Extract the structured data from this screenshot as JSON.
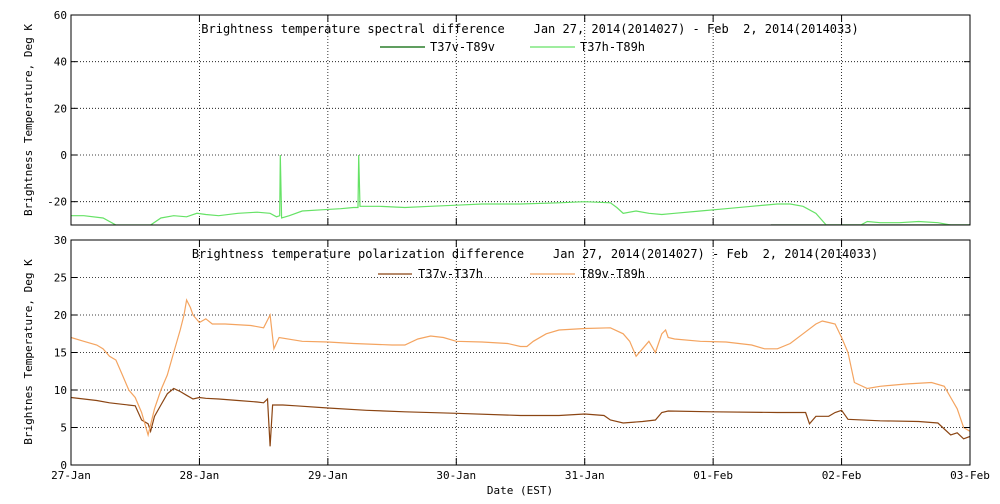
{
  "chart_data": [
    {
      "type": "line",
      "title": "Brightness temperature spectral difference    Jan 27, 2014(2014027) - Feb  2, 2014(2014033)",
      "ylabel": "Brightness Temperature, Deg K",
      "ylim": [
        -30,
        60
      ],
      "yticks": [
        -20,
        0,
        20,
        40,
        60
      ],
      "xlim": [
        0,
        7
      ],
      "grid": true,
      "legend_position": "top-center",
      "series": [
        {
          "name": "T37v-T89v",
          "color": "#006400",
          "points": [
            [
              5.45,
              -30
            ],
            [
              5.5,
              -30
            ],
            [
              7.0,
              -30
            ]
          ]
        },
        {
          "name": "T37h-T89h",
          "color": "#66e266",
          "points": [
            [
              0,
              -26
            ],
            [
              0.1,
              -26
            ],
            [
              0.25,
              -27
            ],
            [
              0.35,
              -30
            ],
            [
              0.62,
              -30
            ],
            [
              0.7,
              -27
            ],
            [
              0.8,
              -26
            ],
            [
              0.9,
              -26.5
            ],
            [
              0.98,
              -25
            ],
            [
              1.05,
              -25.5
            ],
            [
              1.15,
              -26
            ],
            [
              1.3,
              -25
            ],
            [
              1.45,
              -24.5
            ],
            [
              1.55,
              -25
            ],
            [
              1.6,
              -26.5
            ],
            [
              1.625,
              -26
            ],
            [
              1.63,
              0
            ],
            [
              1.64,
              -27
            ],
            [
              1.7,
              -26
            ],
            [
              1.8,
              -24
            ],
            [
              1.95,
              -23.5
            ],
            [
              2.1,
              -23
            ],
            [
              2.2,
              -22.5
            ],
            [
              2.235,
              -22.5
            ],
            [
              2.24,
              0
            ],
            [
              2.25,
              -22
            ],
            [
              2.3,
              -22
            ],
            [
              2.4,
              -22
            ],
            [
              2.6,
              -22.5
            ],
            [
              2.8,
              -22
            ],
            [
              3.0,
              -21.5
            ],
            [
              3.2,
              -21
            ],
            [
              3.5,
              -21
            ],
            [
              3.8,
              -20.5
            ],
            [
              4.0,
              -20
            ],
            [
              4.2,
              -20.5
            ],
            [
              4.25,
              -22.5
            ],
            [
              4.3,
              -25
            ],
            [
              4.4,
              -24
            ],
            [
              4.5,
              -25
            ],
            [
              4.6,
              -25.5
            ],
            [
              4.7,
              -25
            ],
            [
              4.9,
              -24
            ],
            [
              5.1,
              -23
            ],
            [
              5.3,
              -22
            ],
            [
              5.5,
              -21
            ],
            [
              5.6,
              -21
            ],
            [
              5.7,
              -22
            ],
            [
              5.8,
              -25
            ],
            [
              5.88,
              -30
            ],
            [
              6.15,
              -30
            ],
            [
              6.2,
              -28.5
            ],
            [
              6.3,
              -29
            ],
            [
              6.45,
              -29
            ],
            [
              6.6,
              -28.5
            ],
            [
              6.75,
              -29
            ],
            [
              6.85,
              -30
            ],
            [
              7.0,
              -30
            ]
          ]
        }
      ]
    },
    {
      "type": "line",
      "title": "Brightness temperature polarization difference    Jan 27, 2014(2014027) - Feb  2, 2014(2014033)",
      "ylabel": "Brightnes Temperature, Deg K",
      "xlabel": "Date (EST)",
      "ylim": [
        0,
        30
      ],
      "yticks": [
        0,
        5,
        10,
        15,
        20,
        25,
        30
      ],
      "xlim": [
        0,
        7
      ],
      "xticks": [
        "27-Jan",
        "28-Jan",
        "29-Jan",
        "30-Jan",
        "31-Jan",
        "01-Feb",
        "02-Feb",
        "03-Feb"
      ],
      "grid": true,
      "legend_position": "top-center",
      "series": [
        {
          "name": "T37v-T37h",
          "color": "#8b4513",
          "points": [
            [
              0,
              9
            ],
            [
              0.1,
              8.8
            ],
            [
              0.2,
              8.6
            ],
            [
              0.3,
              8.3
            ],
            [
              0.4,
              8.1
            ],
            [
              0.5,
              7.9
            ],
            [
              0.55,
              6.0
            ],
            [
              0.6,
              5.5
            ],
            [
              0.62,
              4.5
            ],
            [
              0.65,
              6.5
            ],
            [
              0.7,
              8.0
            ],
            [
              0.75,
              9.5
            ],
            [
              0.8,
              10.2
            ],
            [
              0.85,
              9.8
            ],
            [
              0.9,
              9.3
            ],
            [
              0.95,
              8.8
            ],
            [
              1.0,
              9.0
            ],
            [
              1.05,
              8.9
            ],
            [
              1.15,
              8.8
            ],
            [
              1.3,
              8.6
            ],
            [
              1.45,
              8.4
            ],
            [
              1.5,
              8.3
            ],
            [
              1.53,
              8.8
            ],
            [
              1.55,
              2.5
            ],
            [
              1.57,
              8.0
            ],
            [
              1.65,
              8.0
            ],
            [
              1.75,
              7.9
            ],
            [
              2.0,
              7.6
            ],
            [
              2.3,
              7.3
            ],
            [
              2.6,
              7.1
            ],
            [
              3.0,
              6.9
            ],
            [
              3.5,
              6.6
            ],
            [
              3.8,
              6.6
            ],
            [
              4.0,
              6.8
            ],
            [
              4.15,
              6.6
            ],
            [
              4.2,
              6.0
            ],
            [
              4.3,
              5.6
            ],
            [
              4.45,
              5.8
            ],
            [
              4.55,
              6.0
            ],
            [
              4.6,
              7.0
            ],
            [
              4.65,
              7.2
            ],
            [
              5.0,
              7.1
            ],
            [
              5.5,
              7.0
            ],
            [
              5.72,
              7.0
            ],
            [
              5.75,
              5.5
            ],
            [
              5.8,
              6.5
            ],
            [
              5.9,
              6.5
            ],
            [
              5.95,
              7.0
            ],
            [
              6.0,
              7.3
            ],
            [
              6.05,
              6.1
            ],
            [
              6.3,
              5.9
            ],
            [
              6.6,
              5.8
            ],
            [
              6.75,
              5.6
            ],
            [
              6.8,
              4.8
            ],
            [
              6.85,
              4.0
            ],
            [
              6.9,
              4.3
            ],
            [
              6.95,
              3.5
            ],
            [
              7.0,
              3.8
            ]
          ]
        },
        {
          "name": "T89v-T89h",
          "color": "#f4a460",
          "points": [
            [
              0,
              17
            ],
            [
              0.1,
              16.5
            ],
            [
              0.2,
              16
            ],
            [
              0.25,
              15.5
            ],
            [
              0.3,
              14.5
            ],
            [
              0.35,
              14
            ],
            [
              0.4,
              12
            ],
            [
              0.45,
              10
            ],
            [
              0.5,
              9
            ],
            [
              0.55,
              7
            ],
            [
              0.6,
              4
            ],
            [
              0.65,
              7.5
            ],
            [
              0.7,
              10
            ],
            [
              0.75,
              12
            ],
            [
              0.8,
              15
            ],
            [
              0.85,
              18
            ],
            [
              0.88,
              20
            ],
            [
              0.9,
              22
            ],
            [
              0.93,
              21
            ],
            [
              0.95,
              20
            ],
            [
              1.0,
              19
            ],
            [
              1.05,
              19.5
            ],
            [
              1.1,
              18.8
            ],
            [
              1.2,
              18.8
            ],
            [
              1.4,
              18.6
            ],
            [
              1.5,
              18.3
            ],
            [
              1.55,
              20
            ],
            [
              1.58,
              15.5
            ],
            [
              1.62,
              17
            ],
            [
              1.8,
              16.5
            ],
            [
              2.0,
              16.4
            ],
            [
              2.2,
              16.2
            ],
            [
              2.5,
              16
            ],
            [
              2.6,
              16
            ],
            [
              2.7,
              16.8
            ],
            [
              2.8,
              17.2
            ],
            [
              2.9,
              17
            ],
            [
              3.0,
              16.5
            ],
            [
              3.2,
              16.4
            ],
            [
              3.4,
              16.2
            ],
            [
              3.5,
              15.8
            ],
            [
              3.55,
              15.8
            ],
            [
              3.6,
              16.5
            ],
            [
              3.7,
              17.5
            ],
            [
              3.8,
              18
            ],
            [
              4.0,
              18.2
            ],
            [
              4.2,
              18.3
            ],
            [
              4.3,
              17.5
            ],
            [
              4.35,
              16.5
            ],
            [
              4.4,
              14.5
            ],
            [
              4.45,
              15.5
            ],
            [
              4.5,
              16.5
            ],
            [
              4.55,
              15
            ],
            [
              4.6,
              17.5
            ],
            [
              4.63,
              18
            ],
            [
              4.65,
              17
            ],
            [
              4.7,
              16.8
            ],
            [
              4.9,
              16.5
            ],
            [
              5.1,
              16.4
            ],
            [
              5.3,
              16
            ],
            [
              5.4,
              15.5
            ],
            [
              5.5,
              15.5
            ],
            [
              5.6,
              16.2
            ],
            [
              5.7,
              17.5
            ],
            [
              5.8,
              18.8
            ],
            [
              5.85,
              19.2
            ],
            [
              5.9,
              19
            ],
            [
              5.95,
              18.8
            ],
            [
              6.0,
              17
            ],
            [
              6.05,
              15
            ],
            [
              6.1,
              11
            ],
            [
              6.2,
              10.2
            ],
            [
              6.3,
              10.5
            ],
            [
              6.5,
              10.8
            ],
            [
              6.7,
              11
            ],
            [
              6.8,
              10.5
            ],
            [
              6.85,
              9
            ],
            [
              6.9,
              7.5
            ],
            [
              6.95,
              5
            ],
            [
              7.0,
              4.5
            ]
          ]
        }
      ]
    }
  ]
}
